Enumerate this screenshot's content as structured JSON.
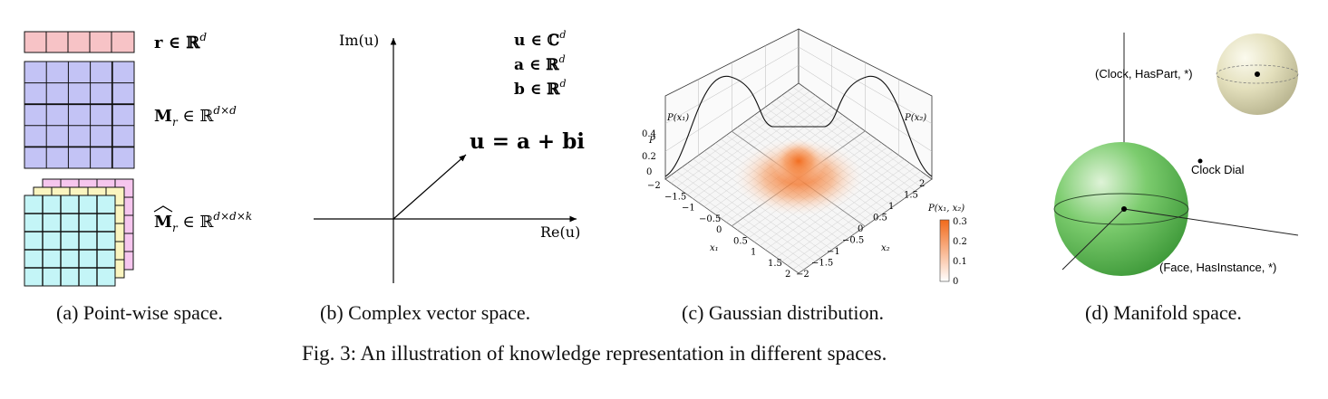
{
  "panel_a": {
    "label_r": "r ∈ ℝ",
    "label_r_sup": "d",
    "label_M": "M",
    "label_M_sub": "r",
    "label_M_rest": " ∈ ℝ",
    "label_M_sup": "d×d",
    "label_Mhat": "M",
    "label_Mhat_sub": "r",
    "label_Mhat_rest": " ∈ ℝ",
    "label_Mhat_sup": "d×d×k",
    "caption": "(a) Point-wise space."
  },
  "panel_b": {
    "y_axis": "Im(u)",
    "x_axis": "Re(u)",
    "def_u": "u ∈ ℂ",
    "def_u_sup": "d",
    "def_a": "a ∈ ℝ",
    "def_a_sup": "d",
    "def_b": "b ∈ ℝ",
    "def_b_sup": "d",
    "equation": "u = a + bi",
    "caption": "(b) Complex vector space."
  },
  "panel_c": {
    "z_label": "P",
    "z_ticks": [
      "0",
      "0.2",
      "0.4"
    ],
    "x1_label": "x₁",
    "x2_label": "x₂",
    "x_ticks": [
      "−2",
      "−1.5",
      "−1",
      "−0.5",
      "0",
      "0.5",
      "1",
      "1.5",
      "2"
    ],
    "x_ticks_right": [
      "2",
      "1.5",
      "1",
      "0.5",
      "0",
      "−0.5",
      "−1",
      "−1.5",
      "−2"
    ],
    "px1_label": "P(x₁)",
    "px2_label": "P(x₂)",
    "pjoint_label": "P(x₁, x₂)",
    "colorbar_ticks": [
      "0.3",
      "0.2",
      "0.1",
      "0"
    ],
    "colorbar_colors": [
      "#ffffff",
      "#f26a1b"
    ],
    "caption": "(c) Gaussian distribution."
  },
  "panel_d": {
    "label_top": "(Clock, HasPart, *)",
    "label_mid": "Clock Dial",
    "label_bottom": "(Face, HasInstance, *)",
    "caption": "(d) Manifold space."
  },
  "figure_caption": "Fig. 3: An illustration of knowledge representation in different spaces."
}
